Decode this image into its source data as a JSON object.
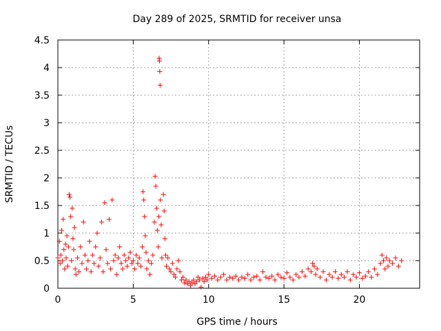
{
  "chart_data": {
    "type": "scatter",
    "title": "Day 289 of 2025, SRMTID for receiver unsa",
    "xlabel": "GPS time / hours",
    "ylabel": "SRMTID / TECUs",
    "xlim": [
      0,
      24
    ],
    "ylim": [
      0,
      4.5
    ],
    "xticks": [
      0,
      5,
      10,
      15,
      20
    ],
    "yticks": [
      0,
      0.5,
      1,
      1.5,
      2,
      2.5,
      3,
      3.5,
      4,
      4.5
    ],
    "xtick_labels": [
      "0",
      "5",
      "10",
      "15",
      "20"
    ],
    "ytick_labels": [
      "0",
      "0.5",
      "1",
      "1.5",
      "2",
      "2.5",
      "3",
      "3.5",
      "4",
      "4.5"
    ],
    "grid": true,
    "marker": "+",
    "marker_color": "#ff0000",
    "series": [
      {
        "name": "unsa",
        "points": [
          [
            0.0,
            0.55
          ],
          [
            0.1,
            0.85
          ],
          [
            0.15,
            0.45
          ],
          [
            0.2,
            0.6
          ],
          [
            0.25,
            1.05
          ],
          [
            0.3,
            0.5
          ],
          [
            0.35,
            1.25
          ],
          [
            0.4,
            0.7
          ],
          [
            0.45,
            0.35
          ],
          [
            0.5,
            0.8
          ],
          [
            0.55,
            0.55
          ],
          [
            0.6,
            0.95
          ],
          [
            0.65,
            0.4
          ],
          [
            0.7,
            0.75
          ],
          [
            0.75,
            1.7
          ],
          [
            0.8,
            1.65
          ],
          [
            0.85,
            1.3
          ],
          [
            0.9,
            0.5
          ],
          [
            0.95,
            1.45
          ],
          [
            1.0,
            0.9
          ],
          [
            1.05,
            0.7
          ],
          [
            1.1,
            1.1
          ],
          [
            1.15,
            0.35
          ],
          [
            1.2,
            0.25
          ],
          [
            1.3,
            0.55
          ],
          [
            1.4,
            0.3
          ],
          [
            1.5,
            0.75
          ],
          [
            1.6,
            0.45
          ],
          [
            1.7,
            1.2
          ],
          [
            1.8,
            0.6
          ],
          [
            1.9,
            0.35
          ],
          [
            2.0,
            0.5
          ],
          [
            2.1,
            0.85
          ],
          [
            2.2,
            0.3
          ],
          [
            2.3,
            0.6
          ],
          [
            2.4,
            0.45
          ],
          [
            2.5,
            0.75
          ],
          [
            2.6,
            1.0
          ],
          [
            2.7,
            0.4
          ],
          [
            2.8,
            0.55
          ],
          [
            2.9,
            1.2
          ],
          [
            3.0,
            0.3
          ],
          [
            3.1,
            1.55
          ],
          [
            3.2,
            0.7
          ],
          [
            3.3,
            0.45
          ],
          [
            3.4,
            1.25
          ],
          [
            3.5,
            0.35
          ],
          [
            3.6,
            1.6
          ],
          [
            3.7,
            0.5
          ],
          [
            3.8,
            0.6
          ],
          [
            3.9,
            0.25
          ],
          [
            4.0,
            0.55
          ],
          [
            4.1,
            0.75
          ],
          [
            4.2,
            0.45
          ],
          [
            4.3,
            0.35
          ],
          [
            4.4,
            0.6
          ],
          [
            4.5,
            0.5
          ],
          [
            4.6,
            0.4
          ],
          [
            4.7,
            0.55
          ],
          [
            4.8,
            0.65
          ],
          [
            4.9,
            0.45
          ],
          [
            5.0,
            0.5
          ],
          [
            5.1,
            0.35
          ],
          [
            5.2,
            0.6
          ],
          [
            5.3,
            0.45
          ],
          [
            5.4,
            0.55
          ],
          [
            5.5,
            0.4
          ],
          [
            5.6,
            0.75
          ],
          [
            5.65,
            1.75
          ],
          [
            5.7,
            1.6
          ],
          [
            5.75,
            1.3
          ],
          [
            5.8,
            0.95
          ],
          [
            5.85,
            0.65
          ],
          [
            5.9,
            0.35
          ],
          [
            6.0,
            0.5
          ],
          [
            6.1,
            0.25
          ],
          [
            6.2,
            0.45
          ],
          [
            6.3,
            0.6
          ],
          [
            6.4,
            1.2
          ],
          [
            6.45,
            2.03
          ],
          [
            6.5,
            1.85
          ],
          [
            6.55,
            1.45
          ],
          [
            6.6,
            1.05
          ],
          [
            6.65,
            0.75
          ],
          [
            6.7,
            1.3
          ],
          [
            6.72,
            4.17
          ],
          [
            6.74,
            4.12
          ],
          [
            6.76,
            3.93
          ],
          [
            6.78,
            3.68
          ],
          [
            6.8,
            1.6
          ],
          [
            6.85,
            1.15
          ],
          [
            6.9,
            0.55
          ],
          [
            7.0,
            1.7
          ],
          [
            7.05,
            1.4
          ],
          [
            7.1,
            0.9
          ],
          [
            7.15,
            0.6
          ],
          [
            7.2,
            0.4
          ],
          [
            7.3,
            0.55
          ],
          [
            7.4,
            0.35
          ],
          [
            7.5,
            0.3
          ],
          [
            7.6,
            0.45
          ],
          [
            7.7,
            0.25
          ],
          [
            7.8,
            0.2
          ],
          [
            7.9,
            0.35
          ],
          [
            8.0,
            0.5
          ],
          [
            8.1,
            0.3
          ],
          [
            8.2,
            0.15
          ],
          [
            8.3,
            0.2
          ],
          [
            8.4,
            0.1
          ],
          [
            8.5,
            0.15
          ],
          [
            8.6,
            0.08
          ],
          [
            8.7,
            0.12
          ],
          [
            8.8,
            0.05
          ],
          [
            8.9,
            0.1
          ],
          [
            9.0,
            0.15
          ],
          [
            9.1,
            0.08
          ],
          [
            9.2,
            0.12
          ],
          [
            9.3,
            0.2
          ],
          [
            9.4,
            0.15
          ],
          [
            9.5,
            0.02
          ],
          [
            9.6,
            0.18
          ],
          [
            9.7,
            0.12
          ],
          [
            9.8,
            0.2
          ],
          [
            9.9,
            0.15
          ],
          [
            10.0,
            0.25
          ],
          [
            10.2,
            0.18
          ],
          [
            10.4,
            0.22
          ],
          [
            10.6,
            0.15
          ],
          [
            10.8,
            0.2
          ],
          [
            11.0,
            0.25
          ],
          [
            11.2,
            0.15
          ],
          [
            11.4,
            0.2
          ],
          [
            11.6,
            0.18
          ],
          [
            11.8,
            0.22
          ],
          [
            12.0,
            0.15
          ],
          [
            12.2,
            0.2
          ],
          [
            12.4,
            0.18
          ],
          [
            12.6,
            0.25
          ],
          [
            12.8,
            0.15
          ],
          [
            13.0,
            0.2
          ],
          [
            13.2,
            0.22
          ],
          [
            13.4,
            0.15
          ],
          [
            13.6,
            0.3
          ],
          [
            13.8,
            0.2
          ],
          [
            14.0,
            0.18
          ],
          [
            14.2,
            0.22
          ],
          [
            14.4,
            0.15
          ],
          [
            14.6,
            0.25
          ],
          [
            14.8,
            0.2
          ],
          [
            15.0,
            0.18
          ],
          [
            15.2,
            0.28
          ],
          [
            15.4,
            0.2
          ],
          [
            15.6,
            0.15
          ],
          [
            15.8,
            0.25
          ],
          [
            16.0,
            0.2
          ],
          [
            16.2,
            0.3
          ],
          [
            16.4,
            0.22
          ],
          [
            16.6,
            0.35
          ],
          [
            16.8,
            0.3
          ],
          [
            16.9,
            0.45
          ],
          [
            17.0,
            0.4
          ],
          [
            17.1,
            0.25
          ],
          [
            17.2,
            0.35
          ],
          [
            17.4,
            0.2
          ],
          [
            17.6,
            0.3
          ],
          [
            17.8,
            0.15
          ],
          [
            18.0,
            0.25
          ],
          [
            18.2,
            0.2
          ],
          [
            18.4,
            0.3
          ],
          [
            18.6,
            0.18
          ],
          [
            18.8,
            0.25
          ],
          [
            19.0,
            0.2
          ],
          [
            19.2,
            0.3
          ],
          [
            19.4,
            0.15
          ],
          [
            19.6,
            0.25
          ],
          [
            19.8,
            0.2
          ],
          [
            20.0,
            0.28
          ],
          [
            20.2,
            0.18
          ],
          [
            20.4,
            0.22
          ],
          [
            20.6,
            0.3
          ],
          [
            20.8,
            0.2
          ],
          [
            21.0,
            0.35
          ],
          [
            21.2,
            0.25
          ],
          [
            21.4,
            0.45
          ],
          [
            21.5,
            0.6
          ],
          [
            21.6,
            0.5
          ],
          [
            21.7,
            0.35
          ],
          [
            21.8,
            0.55
          ],
          [
            21.9,
            0.4
          ],
          [
            22.0,
            0.5
          ],
          [
            22.2,
            0.45
          ],
          [
            22.4,
            0.55
          ],
          [
            22.6,
            0.4
          ],
          [
            22.8,
            0.5
          ]
        ]
      }
    ]
  }
}
